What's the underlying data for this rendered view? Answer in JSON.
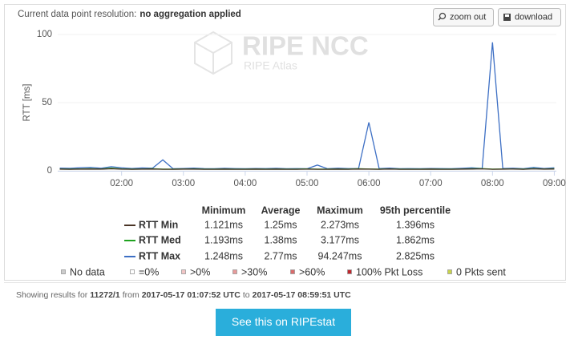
{
  "toolbar": {
    "resolution_label": "Current data point resolution:",
    "resolution_value": "no aggregation applied",
    "buttons": [
      "zoom out",
      "download"
    ]
  },
  "watermark": {
    "title": "RIPE NCC",
    "subtitle": "RIPE Atlas"
  },
  "chart_data": {
    "type": "line",
    "y_label": "RTT [ms]",
    "x": [
      60,
      70,
      80,
      90,
      100,
      110,
      120,
      130,
      140,
      150,
      160,
      170,
      180,
      190,
      200,
      210,
      220,
      230,
      240,
      250,
      260,
      270,
      280,
      290,
      300,
      310,
      320,
      330,
      340,
      350,
      360,
      370,
      380,
      390,
      400,
      410,
      420,
      430,
      440,
      450,
      460,
      470,
      480,
      490,
      500,
      510,
      520,
      530,
      540
    ],
    "xlim": [
      58,
      542
    ],
    "xticks": [
      {
        "value": 120,
        "label": "02:00"
      },
      {
        "value": 180,
        "label": "03:00"
      },
      {
        "value": 240,
        "label": "04:00"
      },
      {
        "value": 300,
        "label": "05:00"
      },
      {
        "value": 360,
        "label": "06:00"
      },
      {
        "value": 420,
        "label": "07:00"
      },
      {
        "value": 480,
        "label": "08:00"
      },
      {
        "value": 540,
        "label": "09:00"
      }
    ],
    "ylim": [
      0,
      105
    ],
    "yticks": [
      0,
      50,
      100
    ],
    "grid": true,
    "series": [
      {
        "name": "RTT Min",
        "color": "#4a3426",
        "values": [
          1.2,
          1.1,
          1.2,
          1.3,
          1.2,
          1.5,
          1.2,
          1.1,
          1.2,
          1.3,
          1.1,
          1.1,
          1.2,
          1.2,
          1.1,
          1.1,
          1.2,
          1.1,
          1.1,
          1.2,
          1.1,
          1.2,
          1.1,
          1.1,
          1.2,
          1.1,
          1.1,
          1.2,
          1.1,
          1.3,
          1.2,
          1.1,
          1.3,
          1.1,
          1.1,
          1.1,
          1.2,
          1.1,
          1.1,
          1.2,
          1.3,
          1.4,
          1.1,
          1.2,
          1.3,
          1.1,
          1.4,
          1.2,
          1.3
        ]
      },
      {
        "name": "RTT Med",
        "color": "#1fa21f",
        "values": [
          1.3,
          1.2,
          1.4,
          1.5,
          1.3,
          2.0,
          1.4,
          1.2,
          1.3,
          1.5,
          1.2,
          1.2,
          1.3,
          1.4,
          1.2,
          1.2,
          1.3,
          1.2,
          1.2,
          1.3,
          1.2,
          1.3,
          1.2,
          1.2,
          1.4,
          1.2,
          1.2,
          1.3,
          1.2,
          1.5,
          1.3,
          1.2,
          1.4,
          1.2,
          1.2,
          1.2,
          1.3,
          1.2,
          1.2,
          1.3,
          1.5,
          1.6,
          1.2,
          1.3,
          1.4,
          1.2,
          1.6,
          1.3,
          1.5
        ]
      },
      {
        "name": "RTT Max",
        "color": "#3d6fc4",
        "values": [
          2.0,
          1.8,
          2.3,
          2.5,
          1.9,
          3.0,
          2.2,
          1.7,
          2.1,
          1.9,
          8.0,
          1.5,
          1.7,
          2.0,
          1.6,
          1.5,
          1.8,
          1.6,
          1.5,
          1.7,
          1.6,
          1.8,
          1.5,
          1.6,
          1.5,
          4.2,
          1.5,
          1.9,
          1.6,
          1.7,
          35.5,
          1.6,
          2.0,
          1.5,
          1.6,
          1.5,
          1.7,
          1.6,
          1.5,
          1.8,
          2.2,
          1.7,
          94.2,
          1.7,
          1.9,
          1.5,
          2.5,
          1.7,
          2.2
        ]
      }
    ]
  },
  "stats": {
    "columns": [
      "Minimum",
      "Average",
      "Maximum",
      "95th percentile"
    ],
    "rows": [
      [
        "1.121ms",
        "1.25ms",
        "2.273ms",
        "1.396ms"
      ],
      [
        "1.193ms",
        "1.38ms",
        "3.177ms",
        "1.862ms"
      ],
      [
        "1.248ms",
        "2.77ms",
        "94.247ms",
        "2.825ms"
      ]
    ]
  },
  "packet_loss_legend": [
    {
      "label": "No data",
      "color": "#cccccc"
    },
    {
      "label": "=0%",
      "color": "#ffffff"
    },
    {
      "label": ">0%",
      "color": "#f3c6c6"
    },
    {
      "label": ">30%",
      "color": "#e89a9a"
    },
    {
      "label": ">60%",
      "color": "#d96b6b"
    },
    {
      "label": "100% Pkt Loss",
      "color": "#c0272d"
    },
    {
      "label": "0 Pkts sent",
      "color": "#c8d44a"
    }
  ],
  "footer": {
    "prefix": "Showing results for",
    "measurement": "11272/1",
    "from_label": "from",
    "start": "2017-05-17 01:07:52 UTC",
    "to_label": "to",
    "end": "2017-05-17 08:59:51 UTC"
  },
  "button": "See this on RIPEstat"
}
